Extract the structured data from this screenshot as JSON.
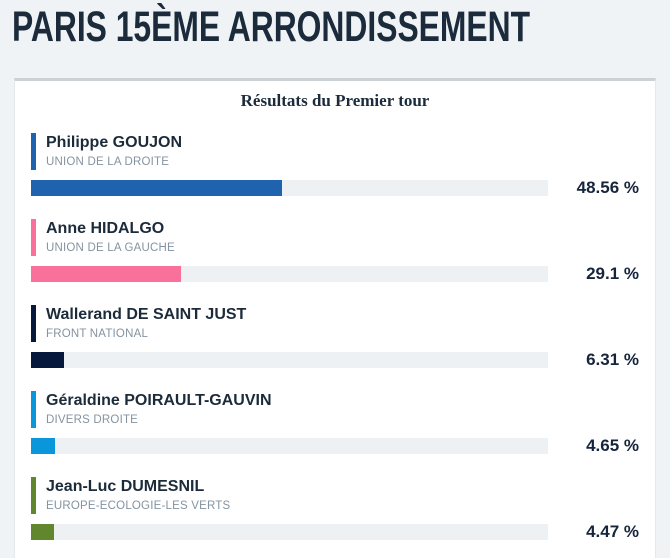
{
  "header": {
    "title": "PARIS 15ÈME ARRONDISSEMENT"
  },
  "card": {
    "title": "Résultats du Premier tour"
  },
  "chart_data": {
    "type": "bar",
    "orientation": "horizontal",
    "title": "Résultats du Premier tour",
    "unit": "%",
    "xlim": [
      0,
      100
    ],
    "grid": false,
    "legend": false,
    "categories": [
      "Philippe GOUJON",
      "Anne HIDALGO",
      "Wallerand DE SAINT JUST",
      "Géraldine POIRAULT-GAUVIN",
      "Jean-Luc DUMESNIL"
    ],
    "values": [
      48.56,
      29.1,
      6.31,
      4.65,
      4.47
    ],
    "candidates": [
      {
        "name": "Philippe GOUJON",
        "party": "UNION DE LA DROITE",
        "value": 48.56,
        "label": "48.56 %",
        "color": "#1f62ae"
      },
      {
        "name": "Anne HIDALGO",
        "party": "UNION DE LA GAUCHE",
        "value": 29.1,
        "label": "29.1 %",
        "color": "#f9719a"
      },
      {
        "name": "Wallerand DE SAINT JUST",
        "party": "FRONT NATIONAL",
        "value": 6.31,
        "label": "6.31 %",
        "color": "#06183c"
      },
      {
        "name": "Géraldine POIRAULT-GAUVIN",
        "party": "DIVERS DROITE",
        "value": 4.65,
        "label": "4.65 %",
        "color": "#0996da"
      },
      {
        "name": "Jean-Luc DUMESNIL",
        "party": "EUROPE-ECOLOGIE-LES VERTS",
        "value": 4.47,
        "label": "4.47 %",
        "color": "#61872e"
      }
    ]
  },
  "colors": {
    "page_bg": "#eff3f6",
    "card_bg": "#ffffff",
    "card_border_top": "#ccd1d5",
    "bar_track": "#edf1f4",
    "heading_text": "#1b2b3b",
    "party_text": "#8493a1"
  }
}
